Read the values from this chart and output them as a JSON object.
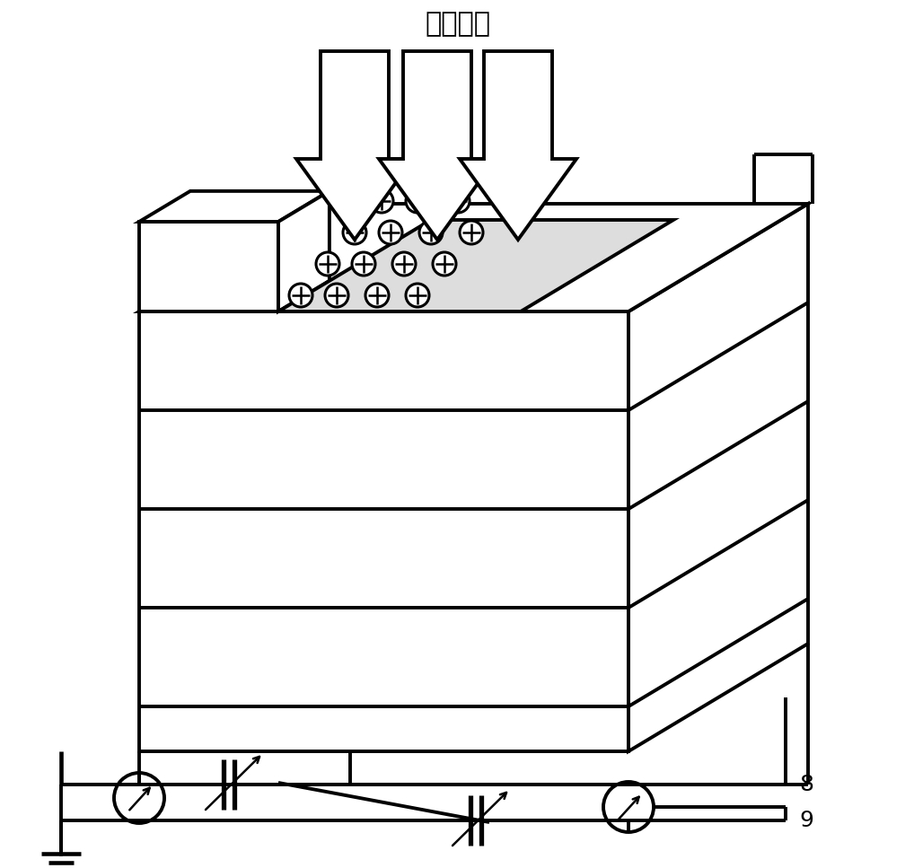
{
  "title": "被探测光",
  "bg_color": "#ffffff",
  "label_8": "8",
  "label_9": "9",
  "lw": 2.8
}
